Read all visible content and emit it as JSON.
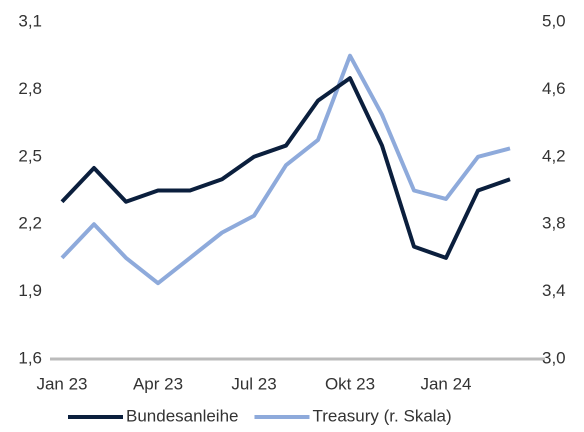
{
  "chart_data": {
    "type": "line",
    "x": [
      "2023-01",
      "2023-02",
      "2023-03",
      "2023-04",
      "2023-05",
      "2023-06",
      "2023-07",
      "2023-08",
      "2023-09",
      "2023-10",
      "2023-11",
      "2023-12",
      "2024-01",
      "2024-02",
      "2024-03"
    ],
    "series": [
      {
        "name": "Bundesanleihe",
        "color": "#0b1f3d",
        "values": [
          2.3,
          2.45,
          2.3,
          2.35,
          2.35,
          2.4,
          2.5,
          2.55,
          2.75,
          2.85,
          2.55,
          2.1,
          2.05,
          2.35,
          2.4
        ]
      },
      {
        "name": "Treasury (r. Skala)",
        "color": "#8eaadb",
        "axis": "y2",
        "values": [
          3.6,
          3.8,
          3.6,
          3.45,
          3.6,
          3.75,
          3.85,
          4.15,
          4.3,
          4.8,
          4.45,
          4.0,
          3.95,
          4.2,
          4.25
        ]
      }
    ],
    "xlim": [
      "2023-01",
      "2024-03"
    ],
    "xticks": [
      {
        "value": "2023-01",
        "label": "Jan 23"
      },
      {
        "value": "2023-04",
        "label": "Apr 23"
      },
      {
        "value": "2023-07",
        "label": "Jul 23"
      },
      {
        "value": "2023-10",
        "label": "Okt 23"
      },
      {
        "value": "2024-01",
        "label": "Jan 24"
      }
    ],
    "ylim": [
      1.6,
      3.1
    ],
    "yticks": [
      {
        "value": 1.6,
        "label": "1,6"
      },
      {
        "value": 1.9,
        "label": "1,9"
      },
      {
        "value": 2.2,
        "label": "2,2"
      },
      {
        "value": 2.5,
        "label": "2,5"
      },
      {
        "value": 2.8,
        "label": "2,8"
      },
      {
        "value": 3.1,
        "label": "3,1"
      }
    ],
    "y2lim": [
      3.0,
      5.0
    ],
    "y2ticks": [
      {
        "value": 3.0,
        "label": "3,0"
      },
      {
        "value": 3.4,
        "label": "3,4"
      },
      {
        "value": 3.8,
        "label": "3,8"
      },
      {
        "value": 4.2,
        "label": "4,2"
      },
      {
        "value": 4.6,
        "label": "4,6"
      },
      {
        "value": 5.0,
        "label": "5,0"
      }
    ],
    "grid": false,
    "legend": "bottom"
  }
}
